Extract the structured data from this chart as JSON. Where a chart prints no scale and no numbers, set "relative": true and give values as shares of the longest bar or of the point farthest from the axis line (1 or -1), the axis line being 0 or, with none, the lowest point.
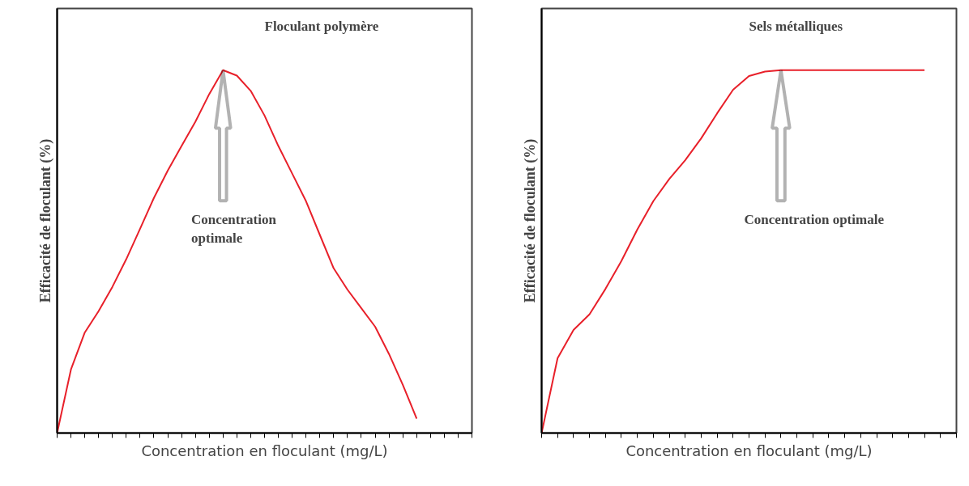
{
  "chart_data": [
    {
      "type": "line",
      "relative": true,
      "title": "Floculant polymère",
      "xlabel": "Concentration en floculant (mg/L)",
      "ylabel": "Efficacité de floculant (%)",
      "categories": [
        null,
        null,
        null,
        null,
        null,
        null,
        null,
        null,
        null,
        null,
        null,
        null,
        null,
        null,
        null,
        null,
        null,
        null,
        null,
        null,
        null,
        null,
        null,
        null,
        null,
        null,
        null,
        null,
        null,
        null,
        null
      ],
      "series": [
        {
          "color": "#e8202a",
          "values": [
            0,
            0.175,
            0.277,
            0.336,
            0.403,
            0.479,
            0.563,
            0.648,
            0.723,
            0.791,
            0.858,
            0.934,
            1,
            0.985,
            0.943,
            0.875,
            0.791,
            0.715,
            0.639,
            0.546,
            0.454,
            0.395,
            0.344,
            0.293,
            0.218,
            0.133,
            0.04,
            null,
            null,
            null,
            null
          ]
        }
      ],
      "annotations": [
        "Concentration\noptimale"
      ]
    },
    {
      "type": "line",
      "relative": true,
      "title": "Sels métalliques",
      "xlabel": "Concentration en floculant (mg/L)",
      "ylabel": "Efficacité de floculant (%)",
      "categories": [
        null,
        null,
        null,
        null,
        null,
        null,
        null,
        null,
        null,
        null,
        null,
        null,
        null,
        null,
        null,
        null,
        null,
        null,
        null,
        null,
        null,
        null,
        null,
        null,
        null,
        null,
        null
      ],
      "series": [
        {
          "color": "#e8202a",
          "values": [
            0,
            0.206,
            0.284,
            0.327,
            0.397,
            0.474,
            0.561,
            0.639,
            0.7,
            0.752,
            0.812,
            0.881,
            0.946,
            0.984,
            0.996,
            1,
            1,
            1,
            1,
            1,
            1,
            1,
            1,
            1,
            1,
            null,
            null
          ]
        }
      ],
      "annotations": [
        "Concentration optimale"
      ]
    }
  ]
}
